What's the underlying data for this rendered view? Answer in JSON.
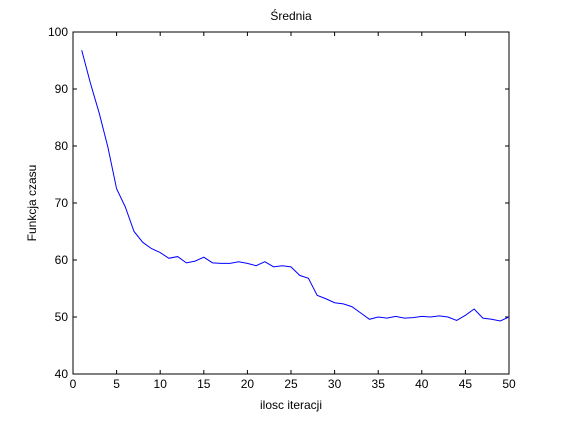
{
  "chart_data": {
    "type": "line",
    "title": "Średnia",
    "xlabel": "ilosc iteracji",
    "ylabel": "Funkcja czasu",
    "xlim": [
      0,
      50
    ],
    "ylim": [
      40,
      100
    ],
    "xticks": [
      0,
      5,
      10,
      15,
      20,
      25,
      30,
      35,
      40,
      45,
      50
    ],
    "yticks": [
      40,
      50,
      60,
      70,
      80,
      90,
      100
    ],
    "grid": false,
    "line_color": "#0000ff",
    "x": [
      1,
      2,
      3,
      4,
      5,
      6,
      7,
      8,
      9,
      10,
      11,
      12,
      13,
      14,
      15,
      16,
      17,
      18,
      19,
      20,
      21,
      22,
      23,
      24,
      25,
      26,
      27,
      28,
      29,
      30,
      31,
      32,
      33,
      34,
      35,
      36,
      37,
      38,
      39,
      40,
      41,
      42,
      43,
      44,
      45,
      46,
      47,
      48,
      49,
      50
    ],
    "values": [
      96.8,
      91.0,
      85.8,
      79.8,
      72.5,
      69.3,
      65.0,
      63.1,
      62.0,
      61.3,
      60.3,
      60.6,
      59.5,
      59.8,
      60.5,
      59.5,
      59.4,
      59.4,
      59.7,
      59.4,
      59.0,
      59.7,
      58.8,
      59.0,
      58.8,
      57.3,
      56.8,
      53.8,
      53.2,
      52.5,
      52.3,
      51.8,
      50.7,
      49.6,
      50.0,
      49.8,
      50.1,
      49.8,
      49.9,
      50.1,
      50.0,
      50.2,
      50.0,
      49.4,
      50.3,
      51.4,
      49.8,
      49.6,
      49.3,
      50.0
    ]
  }
}
